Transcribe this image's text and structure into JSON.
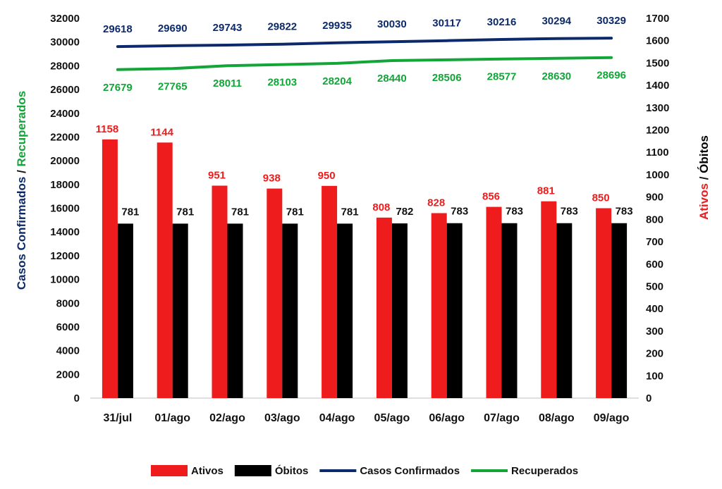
{
  "chart_data": {
    "type": "bar",
    "categories": [
      "31/jul",
      "01/ago",
      "02/ago",
      "03/ago",
      "04/ago",
      "05/ago",
      "06/ago",
      "07/ago",
      "08/ago",
      "09/ago"
    ],
    "series": [
      {
        "name": "Ativos",
        "kind": "bar",
        "axis": "right",
        "color": "#ee1c1c",
        "values": [
          1158,
          1144,
          951,
          938,
          950,
          808,
          828,
          856,
          881,
          850
        ]
      },
      {
        "name": "Óbitos",
        "kind": "bar",
        "axis": "right",
        "color": "#000000",
        "values": [
          781,
          781,
          781,
          781,
          781,
          782,
          783,
          783,
          783,
          783
        ]
      },
      {
        "name": "Casos Confirmados",
        "kind": "line",
        "axis": "left",
        "color": "#0c2a6b",
        "values": [
          29618,
          29690,
          29743,
          29822,
          29935,
          30030,
          30117,
          30216,
          30294,
          30329
        ]
      },
      {
        "name": "Recuperados",
        "kind": "line",
        "axis": "left",
        "color": "#12a538",
        "values": [
          27679,
          27765,
          28011,
          28103,
          28204,
          28440,
          28506,
          28577,
          28630,
          28696
        ]
      }
    ],
    "y_left": {
      "ylim": [
        0,
        32000
      ],
      "ticks": [
        0,
        2000,
        4000,
        6000,
        8000,
        10000,
        12000,
        14000,
        16000,
        18000,
        20000,
        22000,
        24000,
        26000,
        28000,
        30000,
        32000
      ],
      "label_part1": "Casos Confirmados",
      "label_sep": " / ",
      "label_part2": "Recuperados"
    },
    "y_right": {
      "ylim": [
        0,
        1700
      ],
      "ticks": [
        0,
        100,
        200,
        300,
        400,
        500,
        600,
        700,
        800,
        900,
        1000,
        1100,
        1200,
        1300,
        1400,
        1500,
        1600,
        1700
      ],
      "label_part1": "Ativos",
      "label_sep": " / ",
      "label_part2": "Óbitos"
    },
    "grid": false,
    "legend_position": "bottom",
    "legend_items": [
      "Ativos",
      "Óbitos",
      "Casos Confirmados",
      "Recuperados"
    ]
  }
}
